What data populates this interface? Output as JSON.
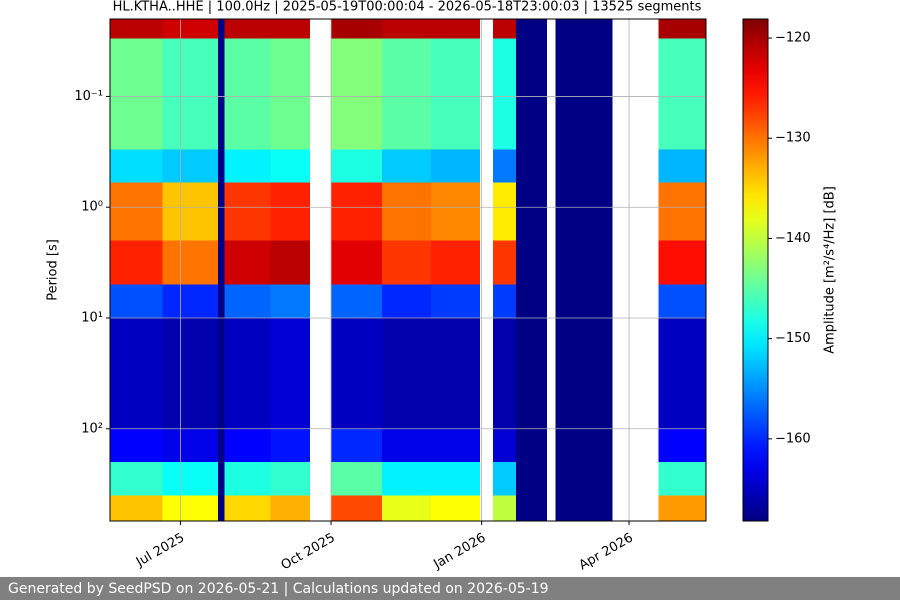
{
  "chart_data": {
    "type": "spectrogram",
    "title": "HL.KTHA..HHE | 100.0Hz | 2025-05-19T00:00:04 - 2026-05-18T23:00:03 | 13525 segments",
    "y_label": "Period [s]",
    "colorbar_label": "Amplitude [m²/s⁴/Hz] [dB]",
    "footer": "Generated by SeedPSD on 2026-05-21 | Calculations updated on 2026-05-19",
    "colormap": "jet",
    "y_scale": "log",
    "y_inverted": true,
    "grid": true,
    "xlim": [
      "2025-05-19",
      "2026-05-18"
    ],
    "xticks": [
      {
        "value": "2025-07-01",
        "label": "Jul 2025"
      },
      {
        "value": "2025-10-01",
        "label": "Oct 2025"
      },
      {
        "value": "2026-01-01",
        "label": "Jan 2026"
      },
      {
        "value": "2026-04-01",
        "label": "Apr 2026"
      }
    ],
    "ylim": [
      0.02,
      680
    ],
    "yticks": [
      {
        "value": 0.1,
        "label": "10⁻¹"
      },
      {
        "value": 1,
        "label": "10⁰"
      },
      {
        "value": 10,
        "label": "10¹"
      },
      {
        "value": 100,
        "label": "10²"
      }
    ],
    "clim": [
      -168.2,
      -118.1
    ],
    "cticks": [
      {
        "value": -120,
        "label": "−120"
      },
      {
        "value": -130,
        "label": "−130"
      },
      {
        "value": -140,
        "label": "−140"
      },
      {
        "value": -150,
        "label": "−150"
      },
      {
        "value": -160,
        "label": "−160"
      }
    ],
    "time_bins": [
      "2025-05-19",
      "2025-06-20",
      "2025-07-24",
      "2025-07-28",
      "2025-08-25",
      "2025-09-18",
      "2025-10-01",
      "2025-11-01",
      "2025-12-01",
      "2025-12-31",
      "2026-01-08",
      "2026-01-22",
      "2026-02-10",
      "2026-02-15",
      "2026-03-22",
      "2026-04-19",
      "2026-05-18"
    ],
    "period_bins": [
      0.02,
      0.03,
      0.3,
      0.6,
      2,
      5,
      10,
      100,
      200,
      400,
      680
    ],
    "values": [
      [
        -121,
        -122,
        -168,
        -121,
        -121,
        null,
        -120,
        -121,
        -121,
        null,
        -121,
        -168,
        null,
        -168,
        null,
        -120
      ],
      [
        -144,
        -146,
        -168,
        -145,
        -144,
        null,
        -143,
        -145,
        -146,
        null,
        -148,
        -168,
        null,
        -168,
        null,
        -146
      ],
      [
        -151,
        -152,
        -168,
        -150,
        -149,
        null,
        -148,
        -152,
        -153,
        null,
        -156,
        -168,
        null,
        -168,
        null,
        -153
      ],
      [
        -130,
        -134,
        -168,
        -127,
        -126,
        null,
        -126,
        -130,
        -131,
        null,
        -136,
        -168,
        null,
        -168,
        null,
        -130
      ],
      [
        -126,
        -130,
        -168,
        -122,
        -121,
        null,
        -123,
        -127,
        -126,
        null,
        -127,
        -168,
        null,
        -168,
        null,
        -125
      ],
      [
        -158,
        -160,
        -168,
        -157,
        -156,
        null,
        -157,
        -160,
        -159,
        null,
        -159,
        -168,
        null,
        -168,
        null,
        -158
      ],
      [
        -165,
        -166,
        -168,
        -165,
        -164,
        null,
        -165,
        -166,
        -166,
        null,
        -166,
        -168,
        null,
        -168,
        null,
        -165
      ],
      [
        -162,
        -163,
        -168,
        -162,
        -161,
        null,
        -160,
        -163,
        -163,
        null,
        -164,
        -168,
        null,
        -168,
        null,
        -162
      ],
      [
        -147,
        -149,
        -168,
        -148,
        -147,
        null,
        -145,
        -150,
        -150,
        null,
        -152,
        -168,
        null,
        -168,
        null,
        -147
      ],
      [
        -134,
        -137,
        -168,
        -135,
        -133,
        null,
        -128,
        -138,
        -137,
        null,
        -140,
        -168,
        null,
        -168,
        null,
        -132
      ]
    ]
  }
}
